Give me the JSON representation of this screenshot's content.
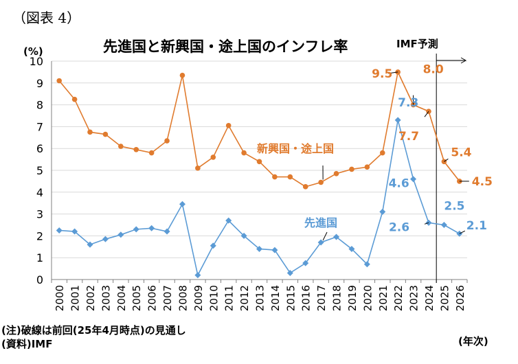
{
  "figure_label": "（図表 4）",
  "note": "(注)破線は前回(25年4月時点)の見通し",
  "source": "(資料)IMF",
  "colors": {
    "emerging": "#E07B2E",
    "advanced": "#5B9BD5",
    "grid": "#D9D9D9",
    "axis": "#000000"
  },
  "chart_data": {
    "type": "line",
    "title": "先進国と新興国・途上国のインフレ率",
    "ylabel": "(%)",
    "xlabel": "(年次)",
    "ylim": [
      0,
      10
    ],
    "yticks": [
      "0",
      "1",
      "2",
      "3",
      "4",
      "5",
      "6",
      "7",
      "8",
      "9",
      "10"
    ],
    "grid": true,
    "forecast_label": "IMF予測",
    "forecast_start": "2025",
    "categories": [
      "2000",
      "2001",
      "2002",
      "2003",
      "2004",
      "2005",
      "2006",
      "2007",
      "2008",
      "2009",
      "2010",
      "2011",
      "2012",
      "2013",
      "2014",
      "2015",
      "2016",
      "2017",
      "2018",
      "2019",
      "2020",
      "2021",
      "2022",
      "2023",
      "2024",
      "2025",
      "2026"
    ],
    "series": [
      {
        "name": "新興国・途上国",
        "color": "#E07B2E",
        "marker": "circle",
        "values": [
          9.1,
          8.25,
          6.75,
          6.65,
          6.1,
          5.95,
          5.8,
          6.35,
          9.35,
          5.1,
          5.6,
          7.05,
          5.8,
          5.4,
          4.7,
          4.7,
          4.25,
          4.45,
          4.85,
          5.05,
          5.15,
          5.8,
          9.5,
          8.0,
          7.7,
          5.4,
          4.5
        ],
        "previous_forecast": [
          9.5,
          8.0,
          7.7,
          5.4,
          4.5
        ],
        "labels": [
          {
            "index": 22,
            "text": "9.5"
          },
          {
            "index": 23,
            "text": "8.0"
          },
          {
            "index": 24,
            "text": "7.7"
          },
          {
            "index": 25,
            "text": "5.4"
          },
          {
            "index": 26,
            "text": "4.5"
          }
        ]
      },
      {
        "name": "先進国",
        "color": "#5B9BD5",
        "marker": "diamond",
        "values": [
          2.25,
          2.2,
          1.6,
          1.85,
          2.05,
          2.3,
          2.35,
          2.2,
          3.45,
          0.2,
          1.55,
          2.7,
          2.0,
          1.4,
          1.35,
          0.3,
          0.75,
          1.7,
          1.95,
          1.4,
          0.7,
          3.1,
          7.3,
          4.6,
          2.6,
          2.5,
          2.1
        ],
        "labels": [
          {
            "index": 22,
            "text": "7.3"
          },
          {
            "index": 23,
            "text": "4.6"
          },
          {
            "index": 24,
            "text": "2.6"
          },
          {
            "index": 25,
            "text": "2.5"
          },
          {
            "index": 26,
            "text": "2.1"
          }
        ]
      }
    ]
  }
}
